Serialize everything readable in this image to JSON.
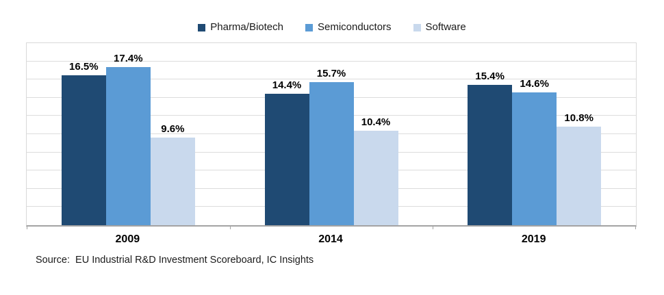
{
  "chart_data": {
    "type": "bar",
    "title": "",
    "categories": [
      "2009",
      "2014",
      "2019"
    ],
    "series": [
      {
        "name": "Pharma/Biotech",
        "color": "#1F4A73",
        "values": [
          16.5,
          14.4,
          15.4
        ]
      },
      {
        "name": "Semiconductors",
        "color": "#5B9BD5",
        "values": [
          17.4,
          15.7,
          14.6
        ]
      },
      {
        "name": "Software",
        "color": "#C9D9ED",
        "values": [
          9.6,
          10.4,
          10.8
        ]
      }
    ],
    "data_labels": [
      [
        "16.5%",
        "14.4%",
        "15.4%"
      ],
      [
        "17.4%",
        "15.7%",
        "14.6%"
      ],
      [
        "9.6%",
        "10.4%",
        "10.8%"
      ]
    ],
    "value_suffix": "%",
    "xlabel": "",
    "ylabel": "",
    "ylim": [
      0,
      20
    ],
    "grid_interval": 2,
    "grid": true,
    "legend_position": "top"
  },
  "footer": {
    "source_note": "Source:  EU Industrial R&D Investment Scoreboard, IC Insights"
  },
  "colors": {
    "gridline": "#dcdcdc",
    "axis_line": "#a3a3a3",
    "plot_border": "#d9d9d9",
    "label_text": "#000000",
    "background": "#ffffff"
  }
}
